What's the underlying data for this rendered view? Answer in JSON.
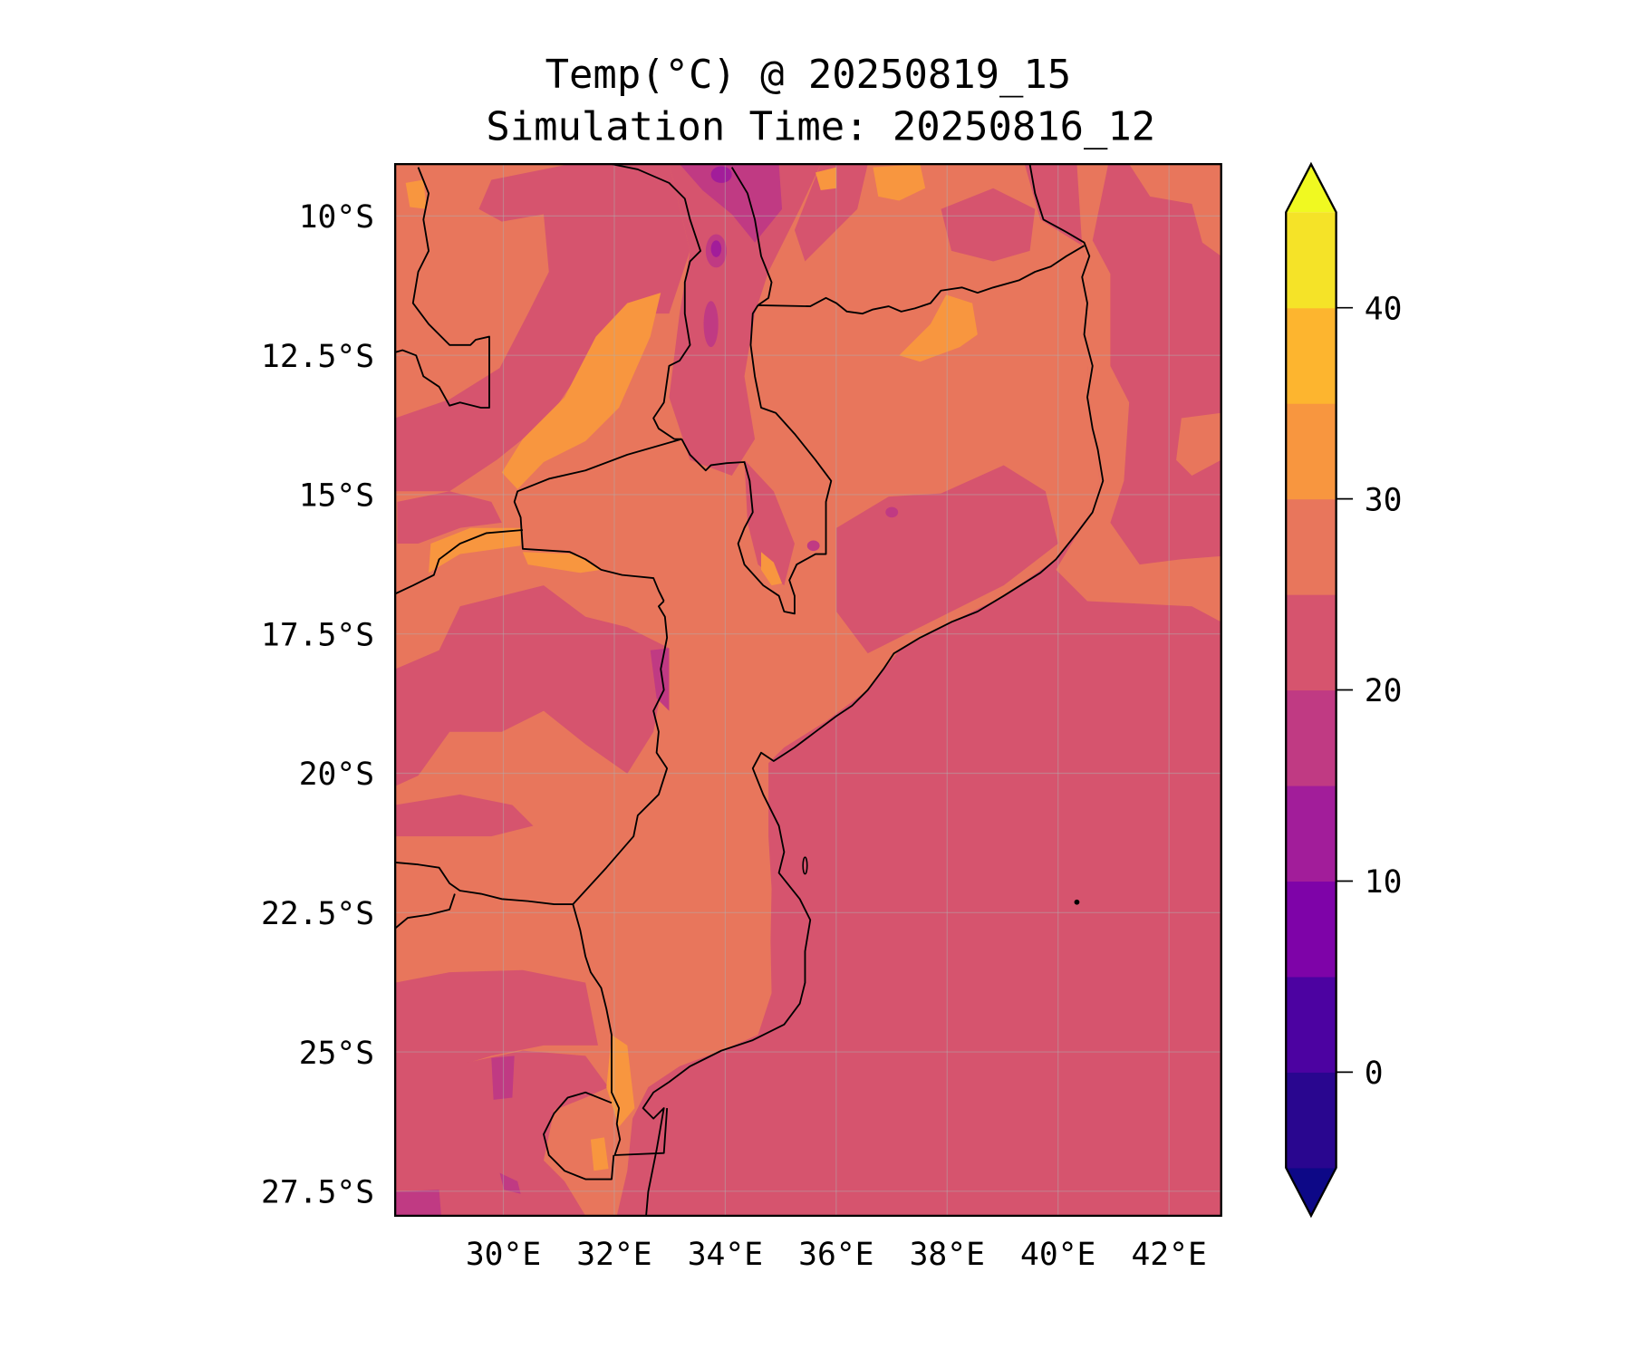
{
  "title": {
    "line1": "Temp(°C) @ 20250819_15",
    "line2": "Simulation Time: 20250816_12"
  },
  "chart_data": {
    "type": "heatmap",
    "subtype": "filled-contour map",
    "variable": "Temperature (°C)",
    "valid_time": "20250819_15",
    "simulation_time": "20250816_12",
    "extent": {
      "lon": [
        28.05,
        42.94
      ],
      "lat_south": [
        9.07,
        27.94
      ]
    },
    "lon_ticks": [
      30,
      32,
      34,
      36,
      38,
      40,
      42
    ],
    "lon_tick_labels": [
      "30°E",
      "32°E",
      "34°E",
      "36°E",
      "38°E",
      "40°E",
      "42°E"
    ],
    "lat_ticks": [
      10,
      12.5,
      15,
      17.5,
      20,
      22.5,
      25,
      27.5
    ],
    "lat_tick_labels": [
      "10°S",
      "12.5°S",
      "15°S",
      "17.5°S",
      "20°S",
      "22.5°S",
      "25°S",
      "27.5°S"
    ],
    "grid": true,
    "dominant_ranges": {
      "ocean": "20-25",
      "inland": "25-30",
      "hot_spots": "30-35",
      "cool_highlands": "10-20"
    },
    "colorbar": {
      "levels": [
        -5,
        0,
        5,
        10,
        15,
        20,
        25,
        30,
        35,
        40,
        45
      ],
      "colors": [
        "#29068f",
        "#4c02a1",
        "#7e03a8",
        "#a21d9a",
        "#c03a83",
        "#d6546e",
        "#e8765c",
        "#f8963f",
        "#fdb52f",
        "#f5e328"
      ],
      "under_color": "#0d0887",
      "over_color": "#f0f921",
      "ticks": [
        0,
        10,
        20,
        30,
        40
      ],
      "tick_labels": [
        "0",
        "10",
        "20",
        "30",
        "40"
      ],
      "extend": "both",
      "position": "right"
    },
    "colors": {
      "c20_25": "#d6546e",
      "c25_30": "#e8765c",
      "c30_35": "#f8963f",
      "c15_20": "#c03a83",
      "c10_15": "#a21d9a"
    }
  }
}
